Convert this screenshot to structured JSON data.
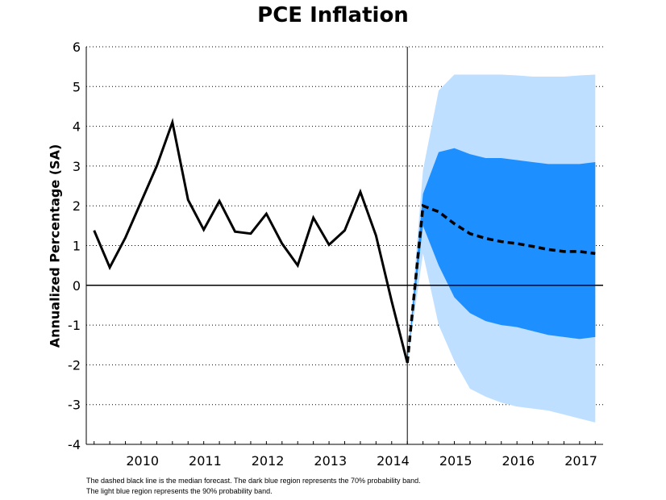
{
  "chart_data": {
    "type": "line",
    "title": "PCE Inflation",
    "ylabel": "Annualized Percentage (SA)",
    "xlabel": "",
    "ylim": [
      -4,
      6
    ],
    "yticks": [
      6,
      5,
      4,
      3,
      2,
      1,
      0,
      -1,
      -2,
      -3,
      -4
    ],
    "xlim": [
      2009.5,
      2017.75
    ],
    "xtick_labels": [
      "2010",
      "2011",
      "2012",
      "2013",
      "2014",
      "2015",
      "2016",
      "2017"
    ],
    "grid": "dotted horizontal",
    "forecast_start": 2014.625,
    "colors": {
      "historical": "#000000",
      "median": "#000000",
      "band70": "#1e8fff",
      "band90": "#bedfff"
    },
    "historical": {
      "x": [
        2009.625,
        2009.875,
        2010.125,
        2010.375,
        2010.625,
        2010.875,
        2011.125,
        2011.375,
        2011.625,
        2011.875,
        2012.125,
        2012.375,
        2012.625,
        2012.875,
        2013.125,
        2013.375,
        2013.625,
        2013.875,
        2014.125,
        2014.375,
        2014.625
      ],
      "y": [
        1.38,
        0.45,
        1.2,
        2.1,
        3.0,
        4.1,
        2.15,
        1.4,
        2.12,
        1.35,
        1.3,
        1.8,
        1.05,
        0.5,
        1.7,
        1.02,
        1.38,
        2.35,
        1.25,
        -0.4,
        -1.95
      ]
    },
    "median": {
      "x": [
        2014.625,
        2014.875,
        2015.125,
        2015.375,
        2015.625,
        2015.875,
        2016.125,
        2016.375,
        2016.625,
        2016.875,
        2017.125,
        2017.375,
        2017.625
      ],
      "y": [
        -1.95,
        2.0,
        1.85,
        1.55,
        1.3,
        1.18,
        1.1,
        1.05,
        0.98,
        0.9,
        0.85,
        0.85,
        0.8
      ]
    },
    "band70": {
      "x": [
        2014.625,
        2014.875,
        2015.125,
        2015.375,
        2015.625,
        2015.875,
        2016.125,
        2016.375,
        2016.625,
        2016.875,
        2017.125,
        2017.375,
        2017.625
      ],
      "upper": [
        -1.95,
        2.3,
        3.35,
        3.45,
        3.3,
        3.2,
        3.2,
        3.15,
        3.1,
        3.05,
        3.05,
        3.05,
        3.1
      ],
      "lower": [
        -1.95,
        1.5,
        0.5,
        -0.3,
        -0.7,
        -0.9,
        -1.0,
        -1.05,
        -1.15,
        -1.25,
        -1.3,
        -1.35,
        -1.3
      ]
    },
    "band90": {
      "x": [
        2014.625,
        2014.875,
        2015.125,
        2015.375,
        2015.625,
        2015.875,
        2016.125,
        2016.375,
        2016.625,
        2016.875,
        2017.125,
        2017.375,
        2017.625
      ],
      "upper": [
        -1.95,
        2.9,
        4.9,
        5.3,
        5.3,
        5.3,
        5.3,
        5.28,
        5.25,
        5.25,
        5.25,
        5.28,
        5.3
      ],
      "lower": [
        -1.95,
        0.8,
        -1.0,
        -1.9,
        -2.6,
        -2.8,
        -2.95,
        -3.05,
        -3.1,
        -3.15,
        -3.25,
        -3.35,
        -3.45
      ]
    }
  },
  "footnotes": {
    "line1": "The dashed black line is the median forecast. The dark blue region represents the 70% probability band.",
    "line2": "The light blue region represents the 90% probability band."
  }
}
